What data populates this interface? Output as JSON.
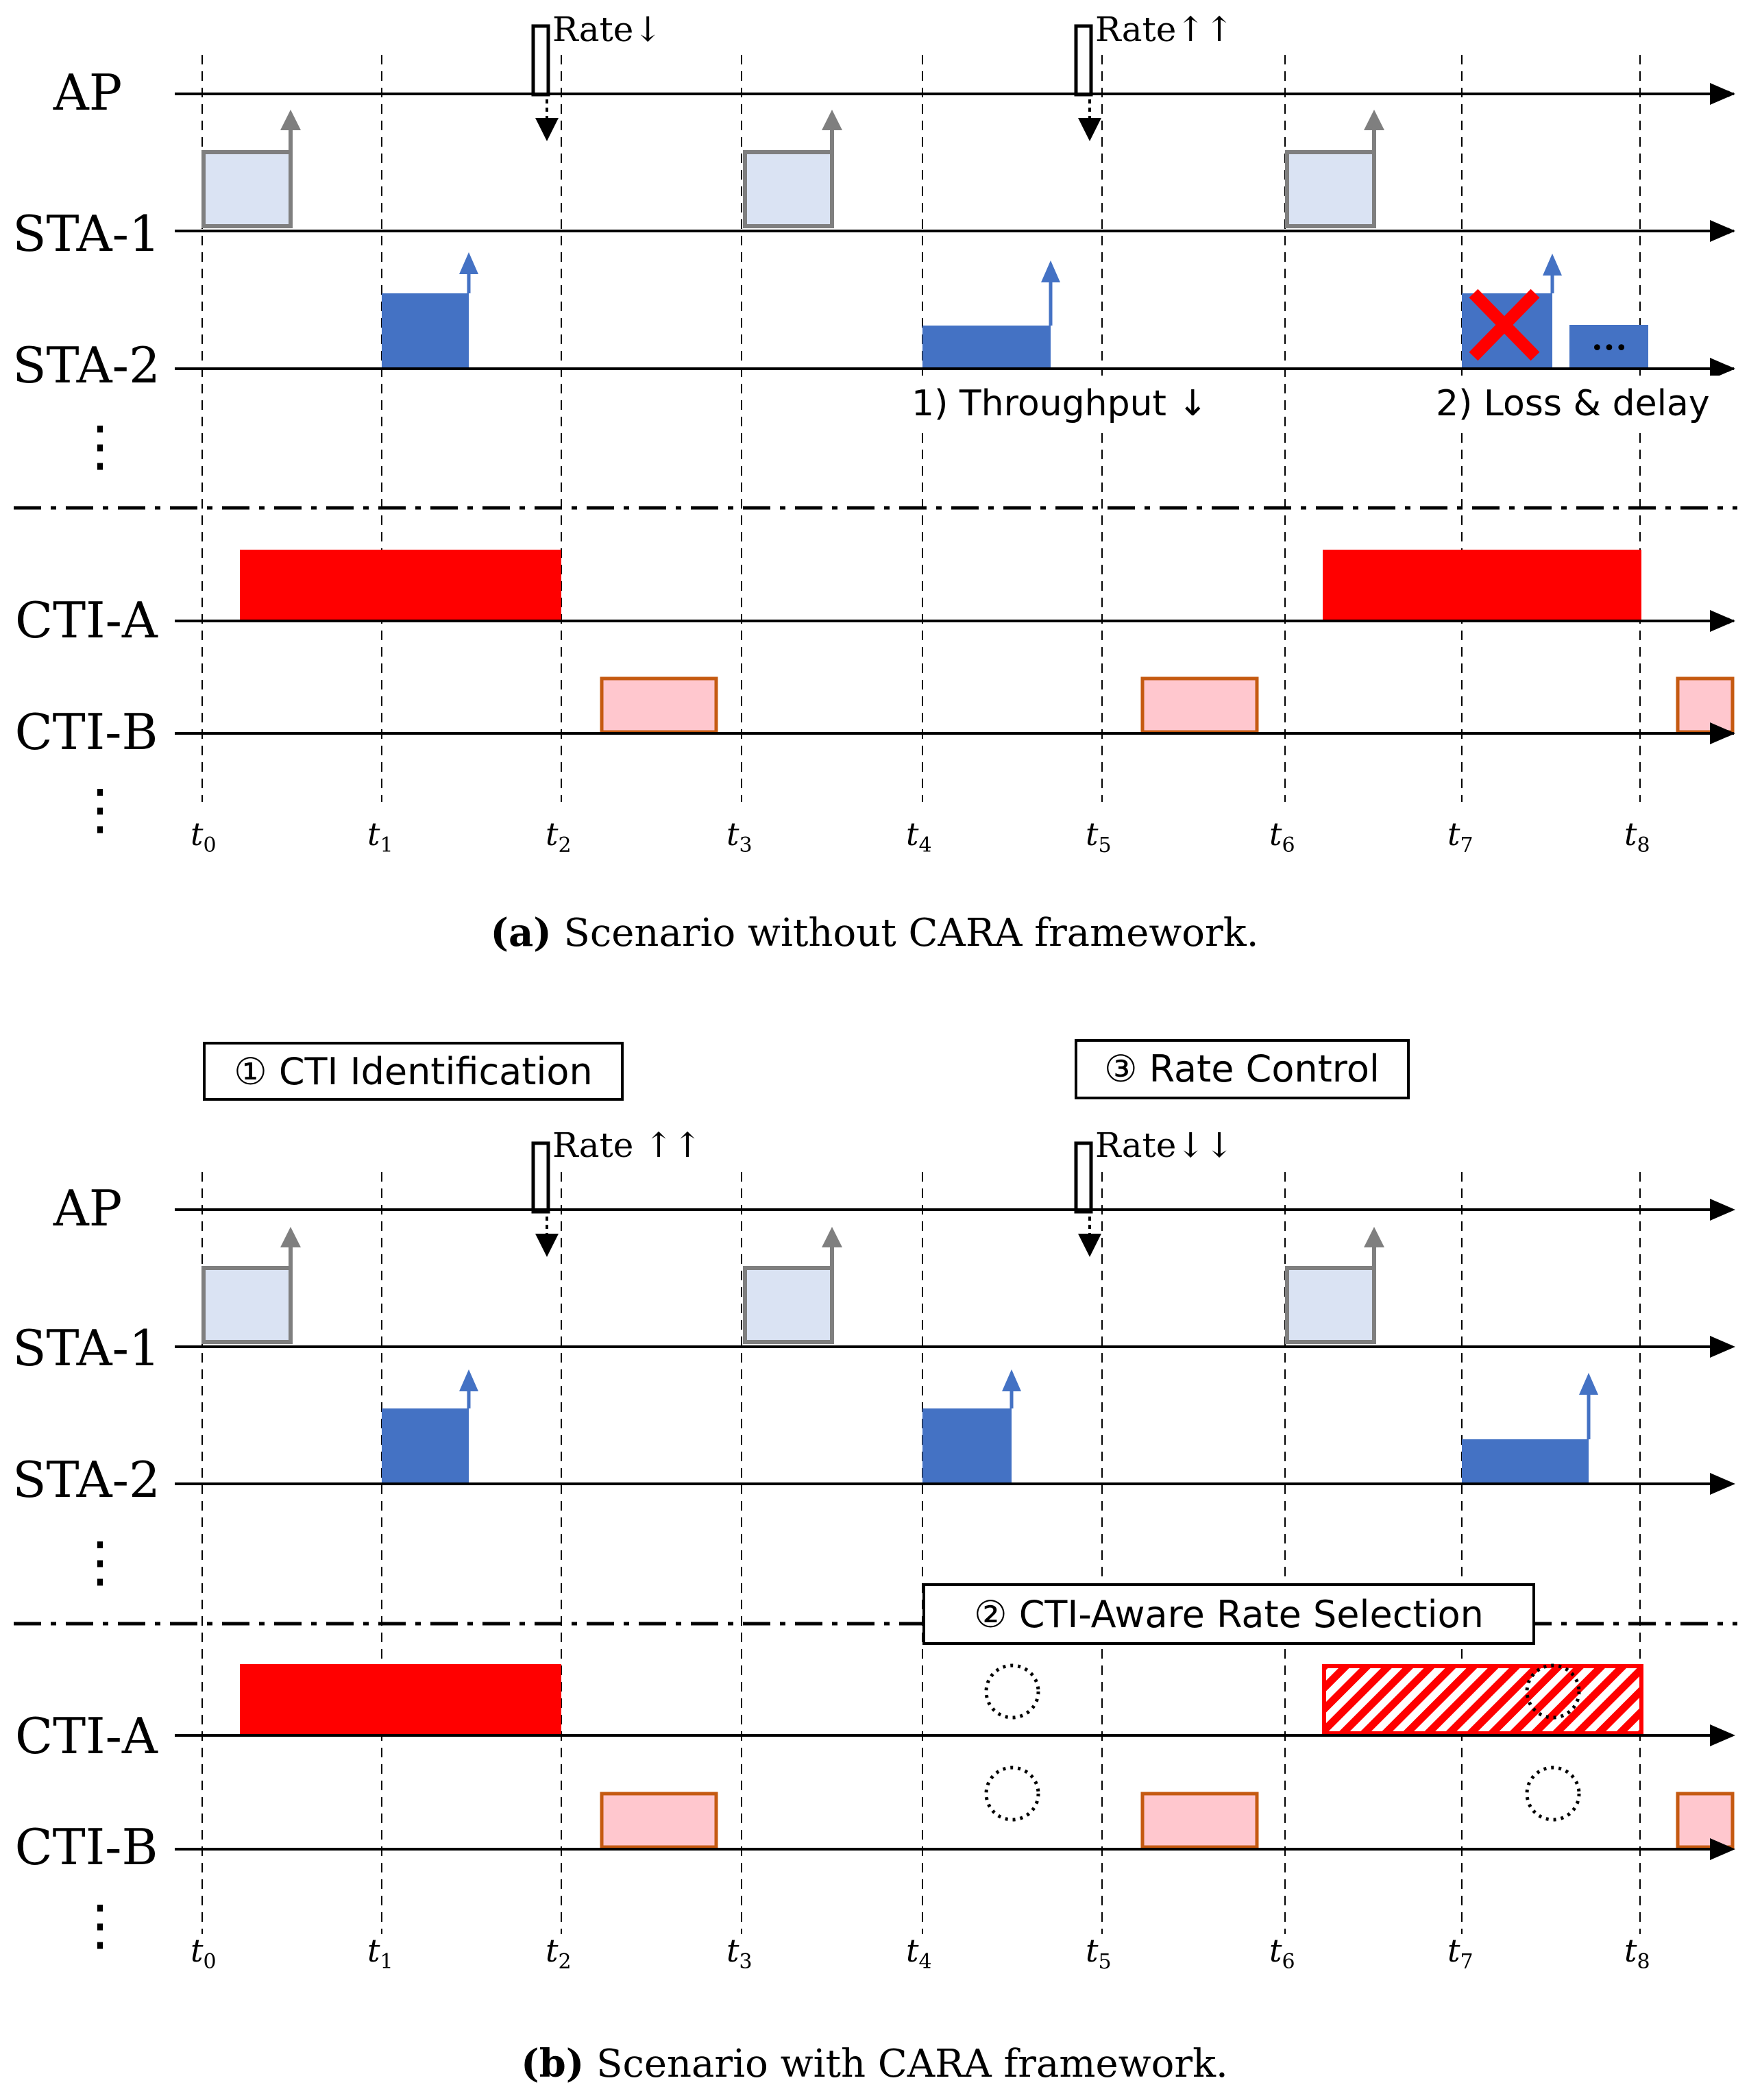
{
  "colors": {
    "lightblue_fill": "#dae3f3",
    "lightblue_stroke": "#7f7f7f",
    "blue": "#4472c4",
    "red": "#ff0000",
    "pink_fill": "#ffc7ce",
    "pink_stroke": "#c55a11",
    "gray_arrow": "#7f7f7f"
  },
  "time_labels": [
    {
      "base": "t",
      "sub": "0"
    },
    {
      "base": "t",
      "sub": "1"
    },
    {
      "base": "t",
      "sub": "2"
    },
    {
      "base": "t",
      "sub": "3"
    },
    {
      "base": "t",
      "sub": "4"
    },
    {
      "base": "t",
      "sub": "5"
    },
    {
      "base": "t",
      "sub": "6"
    },
    {
      "base": "t",
      "sub": "7"
    },
    {
      "base": "t",
      "sub": "8"
    }
  ],
  "panel_a": {
    "rows": [
      "AP",
      "STA-1",
      "STA-2",
      "CTI-A",
      "CTI-B"
    ],
    "ellipsis": "⋮",
    "rate_labels": [
      "Rate↓",
      "Rate↑↑"
    ],
    "annotations": [
      "1) Throughput ↓",
      "2) Loss & delay"
    ],
    "ellipsis_more": "•••",
    "caption_letter": "(a)",
    "caption_text": " Scenario without CARA framework."
  },
  "panel_b": {
    "rows": [
      "AP",
      "STA-1",
      "STA-2",
      "CTI-A",
      "CTI-B"
    ],
    "ellipsis": "⋮",
    "rate_labels": [
      "Rate ↑↑",
      "Rate↓↓"
    ],
    "boxes": [
      "① CTI Identification",
      "③ Rate Control",
      "② CTI-Aware Rate Selection"
    ],
    "caption_letter": "(b)",
    "caption_text": " Scenario with CARA framework."
  }
}
